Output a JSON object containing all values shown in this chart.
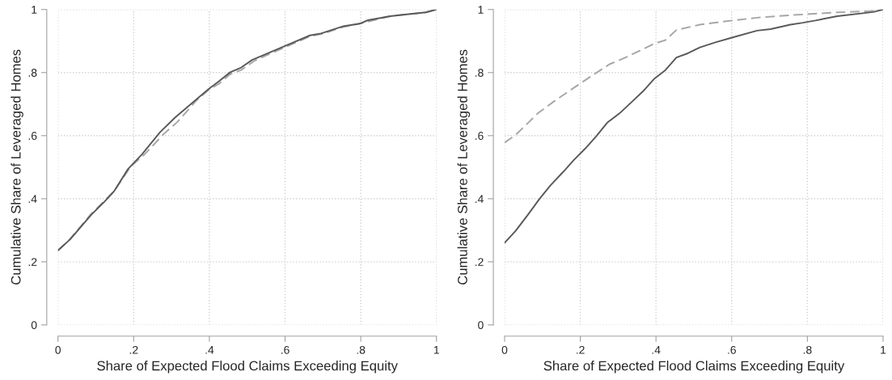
{
  "chart_data": [
    {
      "type": "line",
      "xlabel": "Share of Expected Flood Claims Exceeding Equity",
      "ylabel": "Cumulative Share of Leveraged Homes",
      "xlim": [
        0,
        1
      ],
      "ylim": [
        0,
        1
      ],
      "grid": true,
      "xticks": [
        0,
        {
          "value": 0.2,
          "label": ".2"
        },
        {
          "value": 0.4,
          "label": ".4"
        },
        {
          "value": 0.6,
          "label": ".6"
        },
        {
          "value": 0.8,
          "label": ".8"
        },
        1
      ],
      "yticks": [
        0,
        {
          "value": 0.2,
          "label": ".2"
        },
        {
          "value": 0.4,
          "label": ".4"
        },
        {
          "value": 0.6,
          "label": ".6"
        },
        {
          "value": 0.8,
          "label": ".8"
        },
        1
      ],
      "series": [
        {
          "color": "#a6a6a6",
          "line_style": "dashed",
          "x": [
            0,
            0.032,
            0.087,
            0.149,
            0.192,
            0.229,
            0.28,
            0.316,
            0.367,
            0.397,
            0.426,
            0.455,
            0.484,
            0.52,
            0.601,
            0.666,
            0.703,
            0.754,
            0.797,
            0.878,
            0.972,
            1
          ],
          "values": [
            0.236,
            0.273,
            0.351,
            0.425,
            0.502,
            0.541,
            0.606,
            0.644,
            0.713,
            0.744,
            0.765,
            0.795,
            0.808,
            0.838,
            0.881,
            0.915,
            0.924,
            0.945,
            0.955,
            0.979,
            0.991,
            1
          ]
        },
        {
          "color": "#595959",
          "line_style": "solid",
          "x": [
            0,
            0.032,
            0.087,
            0.123,
            0.149,
            0.185,
            0.222,
            0.269,
            0.309,
            0.397,
            0.426,
            0.455,
            0.484,
            0.513,
            0.601,
            0.666,
            0.695,
            0.754,
            0.797,
            0.819,
            0.878,
            0.972,
            1
          ],
          "values": [
            0.236,
            0.271,
            0.348,
            0.391,
            0.425,
            0.494,
            0.541,
            0.61,
            0.657,
            0.747,
            0.773,
            0.801,
            0.816,
            0.84,
            0.885,
            0.918,
            0.924,
            0.947,
            0.955,
            0.966,
            0.979,
            0.991,
            1
          ]
        }
      ]
    },
    {
      "type": "line",
      "xlabel": "Share of Expected Flood Claims Exceeding Equity",
      "ylabel": "Cumulative Share of Leveraged Homes",
      "xlim": [
        0,
        1
      ],
      "ylim": [
        0,
        1
      ],
      "grid": true,
      "xticks": [
        0,
        {
          "value": 0.2,
          "label": ".2"
        },
        {
          "value": 0.4,
          "label": ".4"
        },
        {
          "value": 0.6,
          "label": ".6"
        },
        {
          "value": 0.8,
          "label": ".8"
        },
        1
      ],
      "yticks": [
        0,
        {
          "value": 0.2,
          "label": ".2"
        },
        {
          "value": 0.4,
          "label": ".4"
        },
        {
          "value": 0.6,
          "label": ".6"
        },
        {
          "value": 0.8,
          "label": ".8"
        },
        1
      ],
      "series": [
        {
          "color": "#a6a6a6",
          "line_style": "dashed",
          "x": [
            0,
            0.029,
            0.059,
            0.088,
            0.132,
            0.198,
            0.256,
            0.278,
            0.322,
            0.396,
            0.425,
            0.454,
            0.516,
            0.601,
            0.667,
            0.755,
            0.799,
            0.879,
            0.967,
            1
          ],
          "values": [
            0.578,
            0.602,
            0.637,
            0.671,
            0.71,
            0.764,
            0.81,
            0.827,
            0.849,
            0.892,
            0.903,
            0.935,
            0.952,
            0.965,
            0.974,
            0.982,
            0.985,
            0.991,
            0.995,
            1
          ]
        },
        {
          "color": "#595959",
          "line_style": "solid",
          "x": [
            0,
            0.029,
            0.062,
            0.092,
            0.121,
            0.154,
            0.183,
            0.213,
            0.242,
            0.271,
            0.304,
            0.337,
            0.366,
            0.396,
            0.425,
            0.454,
            0.484,
            0.516,
            0.557,
            0.601,
            0.667,
            0.703,
            0.755,
            0.788,
            0.821,
            0.879,
            0.974,
            1
          ],
          "values": [
            0.26,
            0.298,
            0.35,
            0.399,
            0.442,
            0.484,
            0.523,
            0.559,
            0.598,
            0.641,
            0.671,
            0.708,
            0.741,
            0.781,
            0.808,
            0.848,
            0.861,
            0.88,
            0.896,
            0.911,
            0.933,
            0.938,
            0.952,
            0.958,
            0.965,
            0.979,
            0.992,
            1
          ]
        }
      ]
    }
  ]
}
